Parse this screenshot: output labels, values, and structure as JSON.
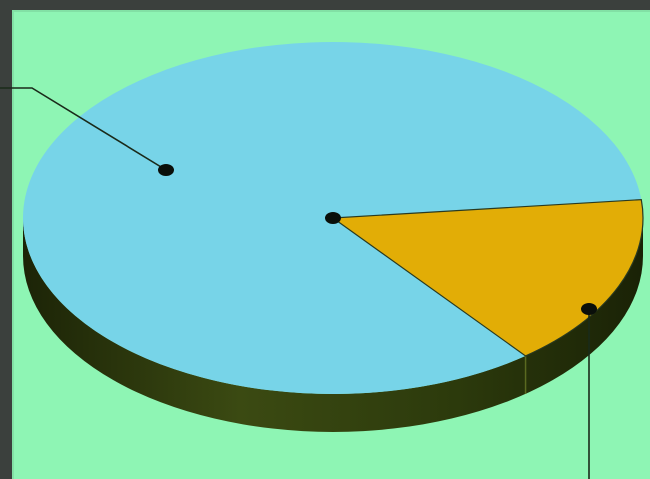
{
  "chart_data": {
    "type": "pie",
    "style": "3d",
    "values": [
      84,
      16
    ],
    "colors": [
      "#77d4e8",
      "#e2ad06"
    ],
    "title": "",
    "legend": "none"
  },
  "colors": {
    "background_panel": "#8ef5b4",
    "frame": "#3b403d",
    "pie_side": "#2c3a0c",
    "leader_line": "#1a2a1a",
    "marker": "#0a0f0a"
  }
}
